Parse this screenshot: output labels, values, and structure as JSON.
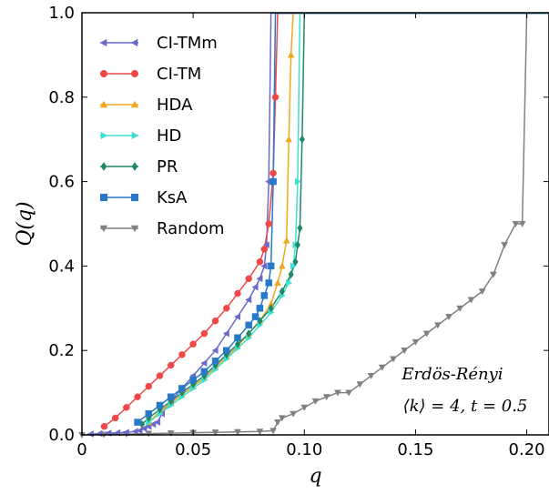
{
  "chart_data": {
    "type": "line",
    "xlabel": "q",
    "ylabel": "Q(q)",
    "xlim": [
      0,
      0.21
    ],
    "ylim": [
      0,
      1.0
    ],
    "xticks": [
      0,
      0.05,
      0.1,
      0.15,
      0.2
    ],
    "xtick_labels": [
      "0",
      "0.05",
      "0.10",
      "0.15",
      "0.20"
    ],
    "yticks": [
      0,
      0.2,
      0.4,
      0.6,
      0.8,
      1.0
    ],
    "ytick_labels": [
      "0.0",
      "0.2",
      "0.4",
      "0.6",
      "0.8",
      "1.0"
    ],
    "grid": false,
    "legend_position": "top-left",
    "annotations": [
      "Erdös-Rényi",
      "⟨k⟩ = 4,  t = 0.5"
    ],
    "series": [
      {
        "name": "CI-TMm",
        "color": "#6a6ac8",
        "marker": "triangle-left",
        "x": [
          0.004,
          0.008,
          0.012,
          0.016,
          0.02,
          0.024,
          0.026,
          0.028,
          0.03,
          0.032,
          0.034,
          0.036,
          0.04,
          0.045,
          0.05,
          0.055,
          0.06,
          0.065,
          0.07,
          0.075,
          0.078,
          0.08,
          0.082,
          0.083,
          0.084,
          0.085,
          0.21
        ],
        "y": [
          0.002,
          0.003,
          0.004,
          0.005,
          0.006,
          0.008,
          0.01,
          0.015,
          0.02,
          0.025,
          0.03,
          0.05,
          0.08,
          0.11,
          0.14,
          0.17,
          0.2,
          0.24,
          0.28,
          0.32,
          0.35,
          0.37,
          0.4,
          0.45,
          0.6,
          1.0,
          1.0
        ]
      },
      {
        "name": "CI-TM",
        "color": "#f04848",
        "marker": "circle",
        "x": [
          0.01,
          0.015,
          0.02,
          0.025,
          0.03,
          0.035,
          0.04,
          0.045,
          0.05,
          0.055,
          0.06,
          0.065,
          0.07,
          0.075,
          0.08,
          0.082,
          0.084,
          0.086,
          0.087,
          0.088,
          0.21
        ],
        "y": [
          0.02,
          0.04,
          0.065,
          0.09,
          0.115,
          0.14,
          0.165,
          0.19,
          0.215,
          0.24,
          0.27,
          0.3,
          0.335,
          0.37,
          0.41,
          0.44,
          0.5,
          0.62,
          0.8,
          1.0,
          1.0
        ]
      },
      {
        "name": "HDA",
        "color": "#f0a820",
        "marker": "triangle-up",
        "x": [
          0.03,
          0.035,
          0.04,
          0.045,
          0.05,
          0.055,
          0.06,
          0.065,
          0.07,
          0.075,
          0.08,
          0.085,
          0.088,
          0.09,
          0.092,
          0.093,
          0.094,
          0.095,
          0.21
        ],
        "y": [
          0.03,
          0.055,
          0.075,
          0.095,
          0.115,
          0.135,
          0.16,
          0.185,
          0.21,
          0.24,
          0.27,
          0.31,
          0.36,
          0.4,
          0.46,
          0.7,
          0.9,
          1.0,
          1.0
        ]
      },
      {
        "name": "HD",
        "color": "#40e0d0",
        "marker": "triangle-right",
        "x": [
          0.03,
          0.035,
          0.04,
          0.045,
          0.05,
          0.055,
          0.06,
          0.065,
          0.07,
          0.075,
          0.08,
          0.085,
          0.09,
          0.093,
          0.095,
          0.096,
          0.097,
          0.098,
          0.21
        ],
        "y": [
          0.03,
          0.05,
          0.07,
          0.09,
          0.11,
          0.13,
          0.155,
          0.18,
          0.205,
          0.23,
          0.26,
          0.29,
          0.33,
          0.36,
          0.4,
          0.45,
          0.6,
          1.0,
          1.0
        ]
      },
      {
        "name": "PR",
        "color": "#208868",
        "marker": "diamond",
        "x": [
          0.027,
          0.03,
          0.035,
          0.04,
          0.045,
          0.05,
          0.055,
          0.06,
          0.065,
          0.07,
          0.075,
          0.08,
          0.085,
          0.09,
          0.094,
          0.096,
          0.097,
          0.098,
          0.099,
          0.1,
          0.21
        ],
        "y": [
          0.025,
          0.04,
          0.06,
          0.08,
          0.1,
          0.12,
          0.14,
          0.165,
          0.19,
          0.215,
          0.24,
          0.27,
          0.3,
          0.34,
          0.38,
          0.41,
          0.45,
          0.49,
          0.7,
          1.0,
          1.0
        ]
      },
      {
        "name": "KsA",
        "color": "#2878c8",
        "marker": "square",
        "x": [
          0.025,
          0.03,
          0.035,
          0.04,
          0.045,
          0.05,
          0.055,
          0.06,
          0.065,
          0.07,
          0.075,
          0.078,
          0.08,
          0.082,
          0.084,
          0.085,
          0.086,
          0.087,
          0.21
        ],
        "y": [
          0.03,
          0.05,
          0.07,
          0.09,
          0.11,
          0.13,
          0.15,
          0.175,
          0.2,
          0.23,
          0.26,
          0.28,
          0.3,
          0.33,
          0.36,
          0.4,
          0.6,
          1.0,
          1.0
        ]
      },
      {
        "name": "Random",
        "color": "#808080",
        "marker": "triangle-down",
        "x": [
          0.0,
          0.01,
          0.02,
          0.03,
          0.04,
          0.05,
          0.06,
          0.07,
          0.08,
          0.086,
          0.088,
          0.09,
          0.095,
          0.1,
          0.105,
          0.11,
          0.115,
          0.12,
          0.125,
          0.13,
          0.135,
          0.14,
          0.145,
          0.15,
          0.155,
          0.16,
          0.165,
          0.17,
          0.175,
          0.18,
          0.185,
          0.19,
          0.195,
          0.198,
          0.2,
          0.21
        ],
        "y": [
          0.0,
          0.001,
          0.002,
          0.003,
          0.004,
          0.005,
          0.006,
          0.007,
          0.008,
          0.01,
          0.03,
          0.04,
          0.05,
          0.065,
          0.08,
          0.09,
          0.1,
          0.1,
          0.12,
          0.14,
          0.16,
          0.18,
          0.2,
          0.22,
          0.24,
          0.26,
          0.28,
          0.3,
          0.32,
          0.34,
          0.38,
          0.45,
          0.5,
          0.5,
          1.0,
          1.0
        ]
      }
    ]
  }
}
